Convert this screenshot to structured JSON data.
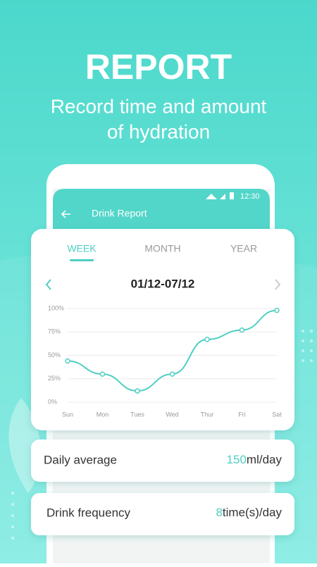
{
  "header": {
    "title": "REPORT",
    "subtitle_lines": [
      "Record time and amount",
      "of hydration"
    ]
  },
  "status_bar": {
    "time": "12:30"
  },
  "app_bar": {
    "title": "Drink Report"
  },
  "tabs": [
    "WEEK",
    "MONTH",
    "YEAR"
  ],
  "date_range": "01/12-07/12",
  "chart_data": {
    "type": "line",
    "categories": [
      "Sun",
      "Mon",
      "Tues",
      "Wed",
      "Thur",
      "Fri",
      "Sat"
    ],
    "values": [
      44,
      30,
      12,
      30,
      67,
      77,
      98
    ],
    "color": "#4fcfc3",
    "ylim": [
      0,
      100
    ],
    "yticks": [
      {
        "value": 0,
        "label": "0%"
      },
      {
        "value": 25,
        "label": "25%"
      },
      {
        "value": 50,
        "label": "50%"
      },
      {
        "value": 75,
        "label": "75%"
      },
      {
        "value": 100,
        "label": "100%"
      }
    ],
    "grid": true
  },
  "stats": [
    {
      "label": "Daily average",
      "value": 150,
      "unit": "ml/day"
    },
    {
      "label": "Drink frequency",
      "value": 8,
      "unit": "time(s)/day"
    }
  ]
}
